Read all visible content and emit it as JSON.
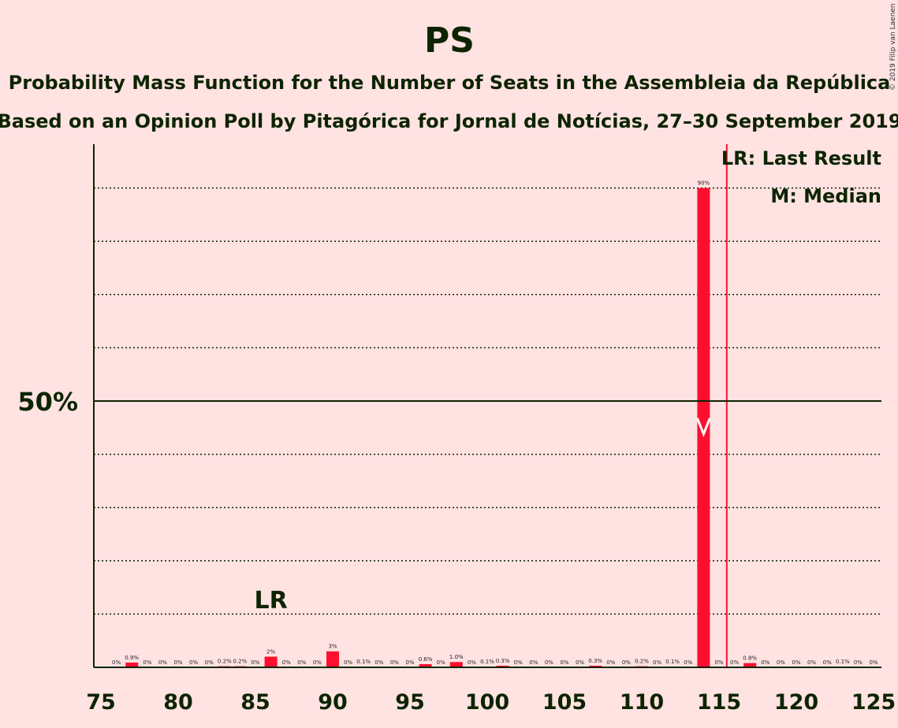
{
  "chart_data": {
    "type": "bar",
    "title": "PS",
    "subtitle1": "Probability Mass Function for the Number of Seats in the Assembleia da República",
    "subtitle2": "Based on an Opinion Poll by Pitagórica for Jornal de Notícias, 27–30 September 2019",
    "copyright": "© 2019 Filip van Laenen",
    "xlim": [
      75,
      125
    ],
    "ylim": [
      0,
      100
    ],
    "x_ticks": [
      75,
      80,
      85,
      90,
      95,
      100,
      105,
      110,
      115,
      120,
      125
    ],
    "y_label": "50%",
    "y_label_value": 50,
    "gridlines": [
      10,
      20,
      30,
      40,
      60,
      70,
      80,
      90
    ],
    "bar_color": "#ff0f2f",
    "x": [
      76,
      77,
      78,
      79,
      80,
      81,
      82,
      83,
      84,
      85,
      86,
      87,
      88,
      89,
      90,
      91,
      92,
      93,
      94,
      95,
      96,
      97,
      98,
      99,
      100,
      101,
      102,
      103,
      104,
      105,
      106,
      107,
      108,
      109,
      110,
      111,
      112,
      113,
      114,
      115,
      116,
      117,
      118,
      119,
      120,
      121,
      122,
      123,
      124,
      125
    ],
    "values": [
      0,
      0.9,
      0,
      0,
      0,
      0,
      0,
      0.2,
      0.2,
      0,
      2,
      0,
      0,
      0,
      3,
      0,
      0.1,
      0,
      0,
      0,
      0.6,
      0,
      1.0,
      0,
      0.1,
      0.3,
      0,
      0,
      0,
      0,
      0,
      0.3,
      0,
      0,
      0.2,
      0,
      0.1,
      0,
      90,
      0,
      0,
      0.8,
      0,
      0,
      0,
      0,
      0,
      0.1,
      0,
      0
    ],
    "labels": [
      "0%",
      "0.9%",
      "0%",
      "0%",
      "0%",
      "0%",
      "0%",
      "0.2%",
      "0.2%",
      "0%",
      "2%",
      "0%",
      "0%",
      "0%",
      "3%",
      "0%",
      "0.1%",
      "0%",
      "0%",
      "0%",
      "0.6%",
      "0%",
      "1.0%",
      "0%",
      "0.1%",
      "0.3%",
      "0%",
      "0%",
      "0%",
      "0%",
      "0%",
      "0.3%",
      "0%",
      "0%",
      "0.2%",
      "0%",
      "0.1%",
      "0%",
      "90%",
      "0%",
      "0%",
      "0.8%",
      "0%",
      "0%",
      "0%",
      "0%",
      "0%",
      "0.1%",
      "0%",
      "0%"
    ],
    "last_result": {
      "seat": 86,
      "label": "LR"
    },
    "median": {
      "seat": 114,
      "value": 45
    },
    "majority_line": 115.5,
    "legend": [
      "LR: Last Result",
      "M: Median"
    ]
  }
}
